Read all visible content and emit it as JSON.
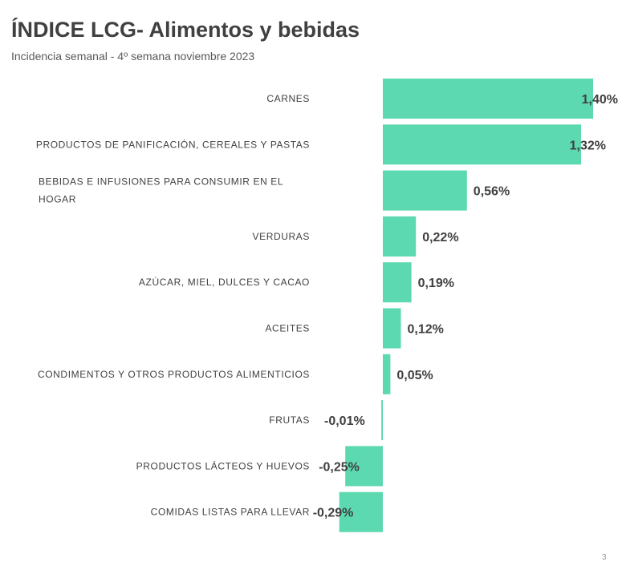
{
  "header": {
    "title": "ÍNDICE LCG- Alimentos y bebidas",
    "subtitle": "Incidencia semanal - 4º semana noviembre 2023"
  },
  "page_number": "3",
  "colors": {
    "bar": "#5cd9b0",
    "text": "#404040"
  },
  "chart_data": {
    "type": "bar",
    "orientation": "horizontal",
    "title": "ÍNDICE LCG- Alimentos y bebidas",
    "subtitle": "Incidencia semanal - 4º semana noviembre 2023",
    "xlabel": "",
    "ylabel": "",
    "grid": false,
    "legend": "none",
    "xlim": [
      -0.29,
      1.4
    ],
    "categories": [
      [
        "CARNES"
      ],
      [
        "PRODUCTOS DE PANIFICACIÓN, CEREALES Y PASTAS"
      ],
      [
        "BEBIDAS E INFUSIONES PARA CONSUMIR EN EL",
        "HOGAR"
      ],
      [
        "VERDURAS"
      ],
      [
        "AZÚCAR, MIEL, DULCES Y CACAO"
      ],
      [
        "ACEITES"
      ],
      [
        "CONDIMENTOS Y OTROS PRODUCTOS ALIMENTICIOS"
      ],
      [
        "FRUTAS"
      ],
      [
        "PRODUCTOS LÁCTEOS Y HUEVOS"
      ],
      [
        "COMIDAS LISTAS PARA LLEVAR"
      ]
    ],
    "values": [
      1.4,
      1.32,
      0.56,
      0.22,
      0.19,
      0.12,
      0.05,
      -0.01,
      -0.25,
      -0.29
    ],
    "value_labels": [
      "1,40%",
      "1,32%",
      "0,56%",
      "0,22%",
      "0,19%",
      "0,12%",
      "0,05%",
      "-0,01%",
      "-0,25%",
      "-0,29%"
    ]
  }
}
